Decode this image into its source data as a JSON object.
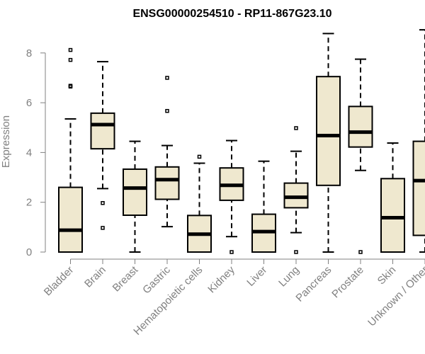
{
  "chart_data": {
    "type": "boxplot",
    "title": "ENSG00000254510 - RP11-867G23.10",
    "xlabel": "",
    "ylabel": "Expression",
    "ylim": [
      0,
      9
    ],
    "yticks": [
      0,
      2,
      4,
      6,
      8
    ],
    "grid": false,
    "legend": "none",
    "box_fill": "#efe8cf",
    "box_stroke": "#000000",
    "axis_color": "#808080",
    "categories": [
      "Bladder",
      "Brain",
      "Breast",
      "Gastric",
      "Hematopoietic cells",
      "Kidney",
      "Liver",
      "Lung",
      "Pancreas",
      "Prostate",
      "Skin",
      "Unknown / Other"
    ],
    "boxes": [
      {
        "category": "Bladder",
        "q1": 0.0,
        "median": 0.88,
        "q3": 2.6,
        "whisker_low": 0.0,
        "whisker_high": 5.35,
        "outliers": [
          6.65,
          6.68,
          7.72,
          8.12
        ]
      },
      {
        "category": "Brain",
        "q1": 4.15,
        "median": 5.12,
        "q3": 5.58,
        "whisker_low": 2.55,
        "whisker_high": 7.65,
        "outliers": [
          0.97,
          1.97
        ]
      },
      {
        "category": "Breast",
        "q1": 1.48,
        "median": 2.57,
        "q3": 3.33,
        "whisker_low": 0.0,
        "whisker_high": 4.45,
        "outliers": []
      },
      {
        "category": "Gastric",
        "q1": 2.12,
        "median": 2.91,
        "q3": 3.42,
        "whisker_low": 1.02,
        "whisker_high": 4.28,
        "outliers": [
          5.67,
          7.0
        ]
      },
      {
        "category": "Hematopoietic cells",
        "q1": 0.0,
        "median": 0.72,
        "q3": 1.47,
        "whisker_low": 0.0,
        "whisker_high": 3.57,
        "outliers": [
          3.83
        ]
      },
      {
        "category": "Kidney",
        "q1": 2.08,
        "median": 2.68,
        "q3": 3.38,
        "whisker_low": 0.62,
        "whisker_high": 4.48,
        "outliers": [
          0.0
        ]
      },
      {
        "category": "Liver",
        "q1": 0.0,
        "median": 0.82,
        "q3": 1.52,
        "whisker_low": 0.0,
        "whisker_high": 3.65,
        "outliers": []
      },
      {
        "category": "Lung",
        "q1": 1.78,
        "median": 2.2,
        "q3": 2.77,
        "whisker_low": 0.78,
        "whisker_high": 4.05,
        "outliers": [
          0.0,
          4.98
        ]
      },
      {
        "category": "Pancreas",
        "q1": 2.68,
        "median": 4.68,
        "q3": 7.05,
        "whisker_low": 0.0,
        "whisker_high": 8.78,
        "outliers": []
      },
      {
        "category": "Prostate",
        "q1": 4.22,
        "median": 4.82,
        "q3": 5.85,
        "whisker_low": 3.28,
        "whisker_high": 7.75,
        "outliers": [
          0.0
        ]
      },
      {
        "category": "Skin",
        "q1": 0.0,
        "median": 1.38,
        "q3": 2.95,
        "whisker_low": 0.0,
        "whisker_high": 4.38,
        "outliers": []
      },
      {
        "category": "Unknown / Other",
        "q1": 0.67,
        "median": 2.87,
        "q3": 4.45,
        "whisker_low": 0.0,
        "whisker_high": 8.93,
        "outliers": []
      }
    ]
  }
}
